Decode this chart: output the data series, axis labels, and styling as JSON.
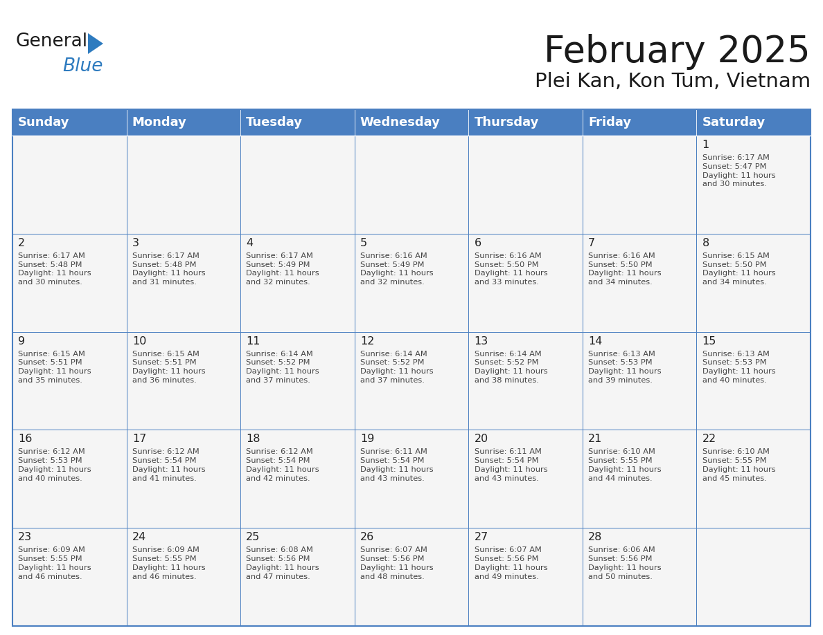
{
  "title": "February 2025",
  "subtitle": "Plei Kan, Kon Tum, Vietnam",
  "days_of_week": [
    "Sunday",
    "Monday",
    "Tuesday",
    "Wednesday",
    "Thursday",
    "Friday",
    "Saturday"
  ],
  "header_bg": "#4a7fc1",
  "header_text": "#ffffff",
  "cell_bg": "#f5f5f5",
  "border_color": "#4a7fc1",
  "grid_color": "#4a7fc1",
  "text_color": "#444444",
  "day_num_color": "#222222",
  "title_color": "#1a1a1a",
  "subtitle_color": "#1a1a1a",
  "logo_general_color": "#1a1a1a",
  "logo_blue_color": "#2e7bbf",
  "calendar_data": [
    [
      {
        "day": null,
        "info": null
      },
      {
        "day": null,
        "info": null
      },
      {
        "day": null,
        "info": null
      },
      {
        "day": null,
        "info": null
      },
      {
        "day": null,
        "info": null
      },
      {
        "day": null,
        "info": null
      },
      {
        "day": 1,
        "info": "Sunrise: 6:17 AM\nSunset: 5:47 PM\nDaylight: 11 hours\nand 30 minutes."
      }
    ],
    [
      {
        "day": 2,
        "info": "Sunrise: 6:17 AM\nSunset: 5:48 PM\nDaylight: 11 hours\nand 30 minutes."
      },
      {
        "day": 3,
        "info": "Sunrise: 6:17 AM\nSunset: 5:48 PM\nDaylight: 11 hours\nand 31 minutes."
      },
      {
        "day": 4,
        "info": "Sunrise: 6:17 AM\nSunset: 5:49 PM\nDaylight: 11 hours\nand 32 minutes."
      },
      {
        "day": 5,
        "info": "Sunrise: 6:16 AM\nSunset: 5:49 PM\nDaylight: 11 hours\nand 32 minutes."
      },
      {
        "day": 6,
        "info": "Sunrise: 6:16 AM\nSunset: 5:50 PM\nDaylight: 11 hours\nand 33 minutes."
      },
      {
        "day": 7,
        "info": "Sunrise: 6:16 AM\nSunset: 5:50 PM\nDaylight: 11 hours\nand 34 minutes."
      },
      {
        "day": 8,
        "info": "Sunrise: 6:15 AM\nSunset: 5:50 PM\nDaylight: 11 hours\nand 34 minutes."
      }
    ],
    [
      {
        "day": 9,
        "info": "Sunrise: 6:15 AM\nSunset: 5:51 PM\nDaylight: 11 hours\nand 35 minutes."
      },
      {
        "day": 10,
        "info": "Sunrise: 6:15 AM\nSunset: 5:51 PM\nDaylight: 11 hours\nand 36 minutes."
      },
      {
        "day": 11,
        "info": "Sunrise: 6:14 AM\nSunset: 5:52 PM\nDaylight: 11 hours\nand 37 minutes."
      },
      {
        "day": 12,
        "info": "Sunrise: 6:14 AM\nSunset: 5:52 PM\nDaylight: 11 hours\nand 37 minutes."
      },
      {
        "day": 13,
        "info": "Sunrise: 6:14 AM\nSunset: 5:52 PM\nDaylight: 11 hours\nand 38 minutes."
      },
      {
        "day": 14,
        "info": "Sunrise: 6:13 AM\nSunset: 5:53 PM\nDaylight: 11 hours\nand 39 minutes."
      },
      {
        "day": 15,
        "info": "Sunrise: 6:13 AM\nSunset: 5:53 PM\nDaylight: 11 hours\nand 40 minutes."
      }
    ],
    [
      {
        "day": 16,
        "info": "Sunrise: 6:12 AM\nSunset: 5:53 PM\nDaylight: 11 hours\nand 40 minutes."
      },
      {
        "day": 17,
        "info": "Sunrise: 6:12 AM\nSunset: 5:54 PM\nDaylight: 11 hours\nand 41 minutes."
      },
      {
        "day": 18,
        "info": "Sunrise: 6:12 AM\nSunset: 5:54 PM\nDaylight: 11 hours\nand 42 minutes."
      },
      {
        "day": 19,
        "info": "Sunrise: 6:11 AM\nSunset: 5:54 PM\nDaylight: 11 hours\nand 43 minutes."
      },
      {
        "day": 20,
        "info": "Sunrise: 6:11 AM\nSunset: 5:54 PM\nDaylight: 11 hours\nand 43 minutes."
      },
      {
        "day": 21,
        "info": "Sunrise: 6:10 AM\nSunset: 5:55 PM\nDaylight: 11 hours\nand 44 minutes."
      },
      {
        "day": 22,
        "info": "Sunrise: 6:10 AM\nSunset: 5:55 PM\nDaylight: 11 hours\nand 45 minutes."
      }
    ],
    [
      {
        "day": 23,
        "info": "Sunrise: 6:09 AM\nSunset: 5:55 PM\nDaylight: 11 hours\nand 46 minutes."
      },
      {
        "day": 24,
        "info": "Sunrise: 6:09 AM\nSunset: 5:55 PM\nDaylight: 11 hours\nand 46 minutes."
      },
      {
        "day": 25,
        "info": "Sunrise: 6:08 AM\nSunset: 5:56 PM\nDaylight: 11 hours\nand 47 minutes."
      },
      {
        "day": 26,
        "info": "Sunrise: 6:07 AM\nSunset: 5:56 PM\nDaylight: 11 hours\nand 48 minutes."
      },
      {
        "day": 27,
        "info": "Sunrise: 6:07 AM\nSunset: 5:56 PM\nDaylight: 11 hours\nand 49 minutes."
      },
      {
        "day": 28,
        "info": "Sunrise: 6:06 AM\nSunset: 5:56 PM\nDaylight: 11 hours\nand 50 minutes."
      },
      {
        "day": null,
        "info": null
      }
    ]
  ]
}
